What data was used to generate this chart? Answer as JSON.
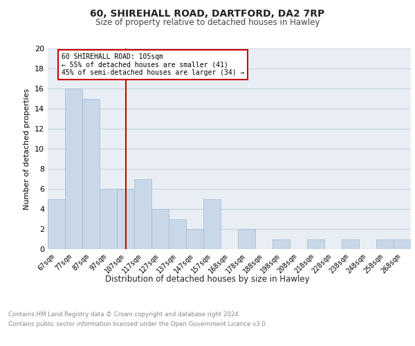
{
  "title1": "60, SHIREHALL ROAD, DARTFORD, DA2 7RP",
  "title2": "Size of property relative to detached houses in Hawley",
  "xlabel": "Distribution of detached houses by size in Hawley",
  "ylabel": "Number of detached properties",
  "categories": [
    "67sqm",
    "77sqm",
    "87sqm",
    "97sqm",
    "107sqm",
    "117sqm",
    "127sqm",
    "137sqm",
    "147sqm",
    "157sqm",
    "168sqm",
    "178sqm",
    "188sqm",
    "198sqm",
    "208sqm",
    "218sqm",
    "228sqm",
    "238sqm",
    "248sqm",
    "258sqm",
    "268sqm"
  ],
  "values": [
    5,
    16,
    15,
    6,
    6,
    7,
    4,
    3,
    2,
    5,
    0,
    2,
    0,
    1,
    0,
    1,
    0,
    1,
    0,
    1,
    1
  ],
  "bar_color": "#c8d8e8",
  "bar_edge_color": "#a0b8cc",
  "vline_x": 4,
  "vline_color": "#cc0000",
  "annotation_line1": "60 SHIREHALL ROAD: 105sqm",
  "annotation_line2": "← 55% of detached houses are smaller (41)",
  "annotation_line3": "45% of semi-detached houses are larger (34) →",
  "annotation_box_color": "#ffffff",
  "annotation_box_edge": "#cc0000",
  "ylim": [
    0,
    20
  ],
  "yticks": [
    0,
    2,
    4,
    6,
    8,
    10,
    12,
    14,
    16,
    18,
    20
  ],
  "footer1": "Contains HM Land Registry data © Crown copyright and database right 2024.",
  "footer2": "Contains public sector information licensed under the Open Government Licence v3.0.",
  "bg_color": "#ffffff",
  "grid_color": "#c8d4e0",
  "ax_bg_color": "#e8eef4"
}
